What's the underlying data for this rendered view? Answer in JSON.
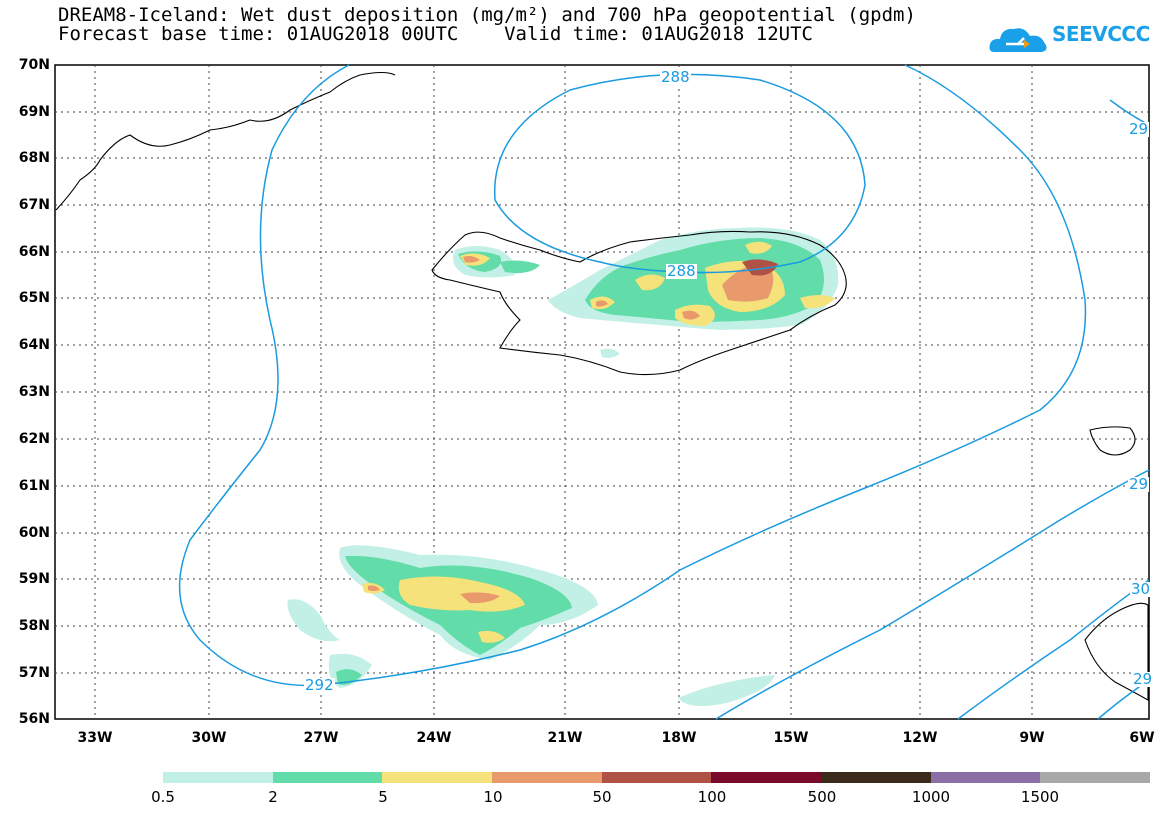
{
  "title": {
    "line1": "DREAM8-Iceland: Wet dust deposition (mg/m²) and 700 hPa geopotential (gpdm)",
    "line2": "Forecast base time: 01AUG2018 00UTC    Valid time: 01AUG2018 12UTC"
  },
  "logo": {
    "text": "SEEVCCC"
  },
  "axes": {
    "lat_labels": [
      "70N",
      "69N",
      "68N",
      "67N",
      "66N",
      "65N",
      "64N",
      "63N",
      "62N",
      "61N",
      "60N",
      "59N",
      "58N",
      "57N",
      "56N"
    ],
    "lon_labels": [
      "33W",
      "30W",
      "27W",
      "24W",
      "21W",
      "18W",
      "15W",
      "12W",
      "9W",
      "6W"
    ]
  },
  "contour_labels": [
    "288",
    "288",
    "292",
    "29",
    "29",
    "30",
    "29"
  ],
  "legend": {
    "colors": [
      "#c2f0e6",
      "#62dca8",
      "#f5e27a",
      "#e99a6c",
      "#b05146",
      "#7a0a2a",
      "#3b2a1a",
      "#8c6ea6",
      "#a8a8a8"
    ],
    "labels": [
      "0.5",
      "2",
      "5",
      "10",
      "50",
      "100",
      "500",
      "1000",
      "1500"
    ]
  }
}
